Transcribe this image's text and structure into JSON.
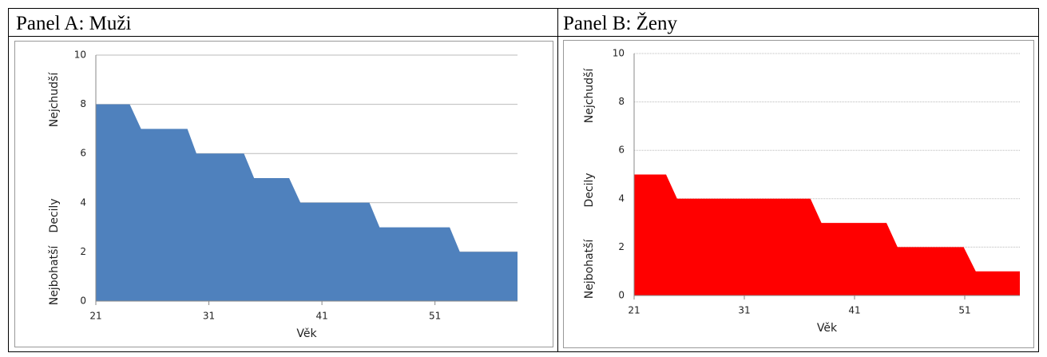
{
  "chart_data": [
    {
      "type": "area",
      "title": "Panel A: Muži",
      "xlabel": "Věk",
      "ylabel": "Decily",
      "ylabel_top": "Nejchudší",
      "ylabel_bottom": "Nejbohatší",
      "x": [
        21,
        24.0,
        25.0,
        29.1,
        29.9,
        34.1,
        35.0,
        38.1,
        39.1,
        45.2,
        46.1,
        52.3,
        53.2,
        58.3
      ],
      "series": [
        {
          "name": "Decily",
          "color": "#4f81bd",
          "values": [
            8,
            8,
            7,
            7,
            6,
            6,
            5,
            5,
            4,
            4,
            3,
            3,
            2,
            2
          ]
        }
      ],
      "xlim": [
        21,
        58.3
      ],
      "xticks": [
        21,
        31,
        41,
        51
      ],
      "ylim": [
        0,
        10
      ],
      "yticks": [
        0,
        2,
        4,
        6,
        8,
        10
      ],
      "grid": true
    },
    {
      "type": "area",
      "title": "Panel B: Ženy",
      "xlabel": "Věk",
      "ylabel": "Decily",
      "ylabel_top": "Nejchudší",
      "ylabel_bottom": "Nejbohatší",
      "x": [
        21,
        23.9,
        24.9,
        37.0,
        38.0,
        43.9,
        44.9,
        50.9,
        52.0,
        56
      ],
      "series": [
        {
          "name": "Decily",
          "color": "#ff0000",
          "values": [
            5,
            5,
            4,
            4,
            3,
            3,
            2,
            2,
            1,
            1
          ]
        }
      ],
      "xlim": [
        21,
        56
      ],
      "xticks": [
        21,
        31,
        41,
        51
      ],
      "ylim": [
        0,
        10
      ],
      "yticks": [
        0,
        2,
        4,
        6,
        8,
        10
      ],
      "grid": true
    }
  ]
}
